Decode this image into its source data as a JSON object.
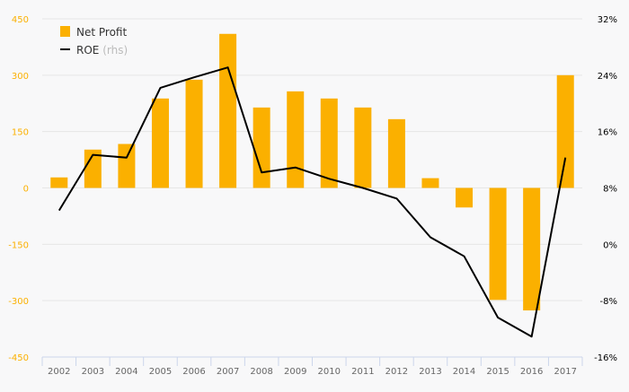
{
  "chart_data": {
    "type": "bar+line",
    "categories": [
      "2002",
      "2003",
      "2004",
      "2005",
      "2006",
      "2007",
      "2008",
      "2009",
      "2010",
      "2011",
      "2012",
      "2013",
      "2014",
      "2015",
      "2016",
      "2017"
    ],
    "series": [
      {
        "name": "Net Profit",
        "type": "bar",
        "axis": "left",
        "color": "#FBB000",
        "values": [
          28,
          102,
          117,
          238,
          288,
          410,
          214,
          257,
          238,
          214,
          183,
          26,
          -52,
          -298,
          -326,
          300
        ]
      },
      {
        "name": "ROE",
        "suffix": "(rhs)",
        "type": "line",
        "axis": "right",
        "color": "#000000",
        "values": [
          4.8,
          12.7,
          12.3,
          22.2,
          23.7,
          25.1,
          10.2,
          10.9,
          9.3,
          8.0,
          6.5,
          1.0,
          -1.7,
          -10.4,
          -13.1,
          12.3
        ]
      }
    ],
    "left_axis": {
      "range": [
        -450,
        450
      ],
      "ticks": [
        "450",
        "300",
        "150",
        "0",
        "-150",
        "-300",
        "-450"
      ],
      "tick_values": [
        450,
        300,
        150,
        0,
        -150,
        -300,
        -450
      ],
      "color": "#FBB000"
    },
    "right_axis": {
      "range": [
        -16,
        32
      ],
      "ticks": [
        "32%",
        "24%",
        "16%",
        "8%",
        "0%",
        "-8%",
        "-16%"
      ],
      "tick_values": [
        32,
        24,
        16,
        8,
        0,
        -8,
        -16
      ],
      "color": "#000000"
    },
    "legend": {
      "placement": "top-left",
      "items": [
        "Net Profit",
        "ROE"
      ],
      "rhs_note": "(rhs)"
    },
    "grid": true
  }
}
